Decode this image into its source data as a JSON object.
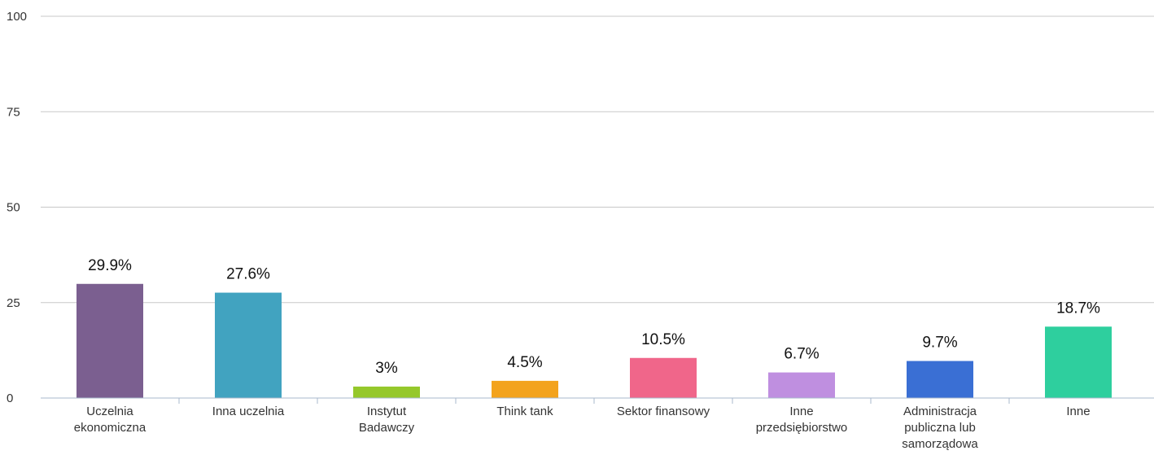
{
  "chart_data": {
    "type": "bar",
    "categories": [
      [
        "Uczelnia",
        "ekonomiczna"
      ],
      [
        "Inna uczelnia"
      ],
      [
        "Instytut",
        "Badawczy"
      ],
      [
        "Think tank"
      ],
      [
        "Sektor finansowy"
      ],
      [
        "Inne",
        "przedsiębiorstwo"
      ],
      [
        "Administracja",
        "publiczna lub",
        "samorządowa"
      ],
      [
        "Inne"
      ]
    ],
    "values": [
      29.9,
      27.6,
      3,
      4.5,
      10.5,
      6.7,
      9.7,
      18.7
    ],
    "data_labels": [
      "29.9%",
      "27.6%",
      "3%",
      "4.5%",
      "10.5%",
      "6.7%",
      "9.7%",
      "18.7%"
    ],
    "colors": [
      "#7b5f90",
      "#41a3c0",
      "#95c82b",
      "#f3a31d",
      "#f0668a",
      "#bf8fe0",
      "#3a6fd4",
      "#2ecf9e"
    ],
    "ylim": [
      0,
      100
    ],
    "yticks": [
      "0",
      "25",
      "50",
      "75",
      "100"
    ],
    "grid": true,
    "title": "",
    "xlabel": "",
    "ylabel": ""
  }
}
